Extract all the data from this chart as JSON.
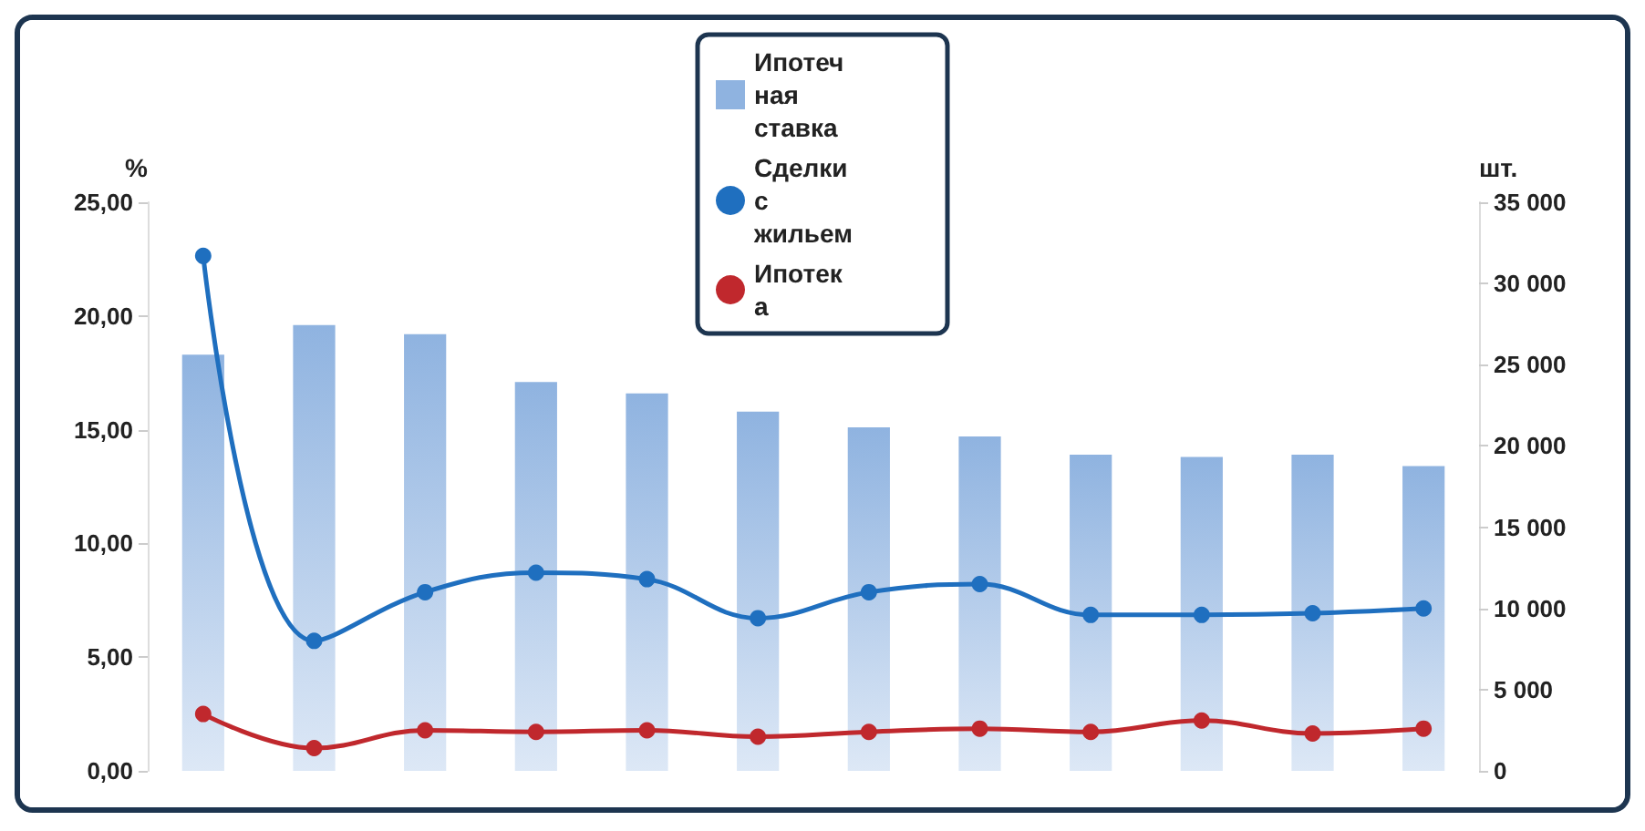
{
  "chart_data": {
    "type": "bar",
    "ylabel": "%",
    "y2label": "шт.",
    "categories": [
      null,
      null,
      null,
      null,
      null,
      null,
      null,
      null,
      null,
      null,
      null,
      null
    ],
    "series": [
      {
        "name": "Ипотечная ставка",
        "color": "#8fb3e0",
        "values": [
          18.3,
          19.6,
          19.2,
          17.1,
          16.6,
          15.8,
          15.1,
          14.7,
          13.9,
          13.8,
          13.9,
          13.4
        ]
      },
      {
        "name": "Сделки с жильем",
        "type": "line",
        "axis": "y2",
        "color": "#1f6fbf",
        "values": [
          31700,
          8000,
          11000,
          12200,
          11800,
          9400,
          11000,
          11500,
          9600,
          9600,
          9700,
          10000
        ]
      },
      {
        "name": "Ипотека",
        "type": "line",
        "axis": "y2",
        "color": "#c0282d",
        "values": [
          3500,
          1400,
          2500,
          2400,
          2500,
          2100,
          2400,
          2600,
          2400,
          3100,
          2300,
          2600
        ]
      }
    ],
    "ylim": [
      0,
      25
    ],
    "yticks": [
      {
        "value": 0,
        "label": "0,00"
      },
      {
        "value": 5,
        "label": "5,00"
      },
      {
        "value": 10,
        "label": "10,00"
      },
      {
        "value": 15,
        "label": "15,00"
      },
      {
        "value": 20,
        "label": "20,00"
      },
      {
        "value": 25,
        "label": "25,00"
      }
    ],
    "y2lim": [
      0,
      35000
    ],
    "y2ticks": [
      0,
      {
        "value": 5000,
        "label": "5 000"
      },
      {
        "value": 10000,
        "label": "10 000"
      },
      {
        "value": 15000,
        "label": "15 000"
      },
      {
        "value": 20000,
        "label": "20 000"
      },
      {
        "value": 25000,
        "label": "25 000"
      },
      {
        "value": 30000,
        "label": "30 000"
      },
      {
        "value": 35000,
        "label": "35 000"
      }
    ],
    "marker": "circle",
    "legend": "top",
    "grid": false,
    "tick_labels": "y"
  }
}
